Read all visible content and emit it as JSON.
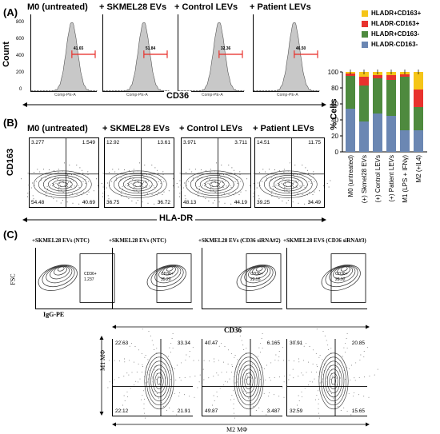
{
  "panelA": {
    "letter": "(A)",
    "ylabel": "Count",
    "xlabel": "CD36",
    "yticks": [
      "800",
      "600",
      "400",
      "200",
      "0"
    ],
    "xlabel_small": "Comp-PE-A",
    "plots": [
      {
        "title": "M0 (untreated)",
        "value": "41.65"
      },
      {
        "title": "+ SKMEL28 EVs",
        "value": "51.84"
      },
      {
        "title": "+ Control LEVs",
        "value": "32.36"
      },
      {
        "title": "+ Patient LEVs",
        "value": "46.50"
      }
    ]
  },
  "panelB": {
    "letter": "(B)",
    "ylabel": "CD163",
    "xlabel": "HLA-DR",
    "plots": [
      {
        "title": "M0 (untreated)",
        "tl": "3.277",
        "tr": "1.549",
        "bl": "54.48",
        "br": "40.69"
      },
      {
        "title": "+ SKMEL28 EVs",
        "tl": "12.92",
        "tr": "13.61",
        "bl": "36.75",
        "br": "36.72"
      },
      {
        "title": "+ Control LEVs",
        "tl": "3.971",
        "tr": "3.711",
        "bl": "48.13",
        "br": "44.19"
      },
      {
        "title": "+ Patient LEVs",
        "tl": "14.51",
        "tr": "11.75",
        "bl": "39.25",
        "br": "34.49"
      }
    ]
  },
  "panelC": {
    "letter": "(C)",
    "fsc_label": "FSC",
    "igg_label": "IgG-PE",
    "cd36_label": "CD36",
    "m1_label": "M1 MΦ",
    "m2_label": "M2 MΦ",
    "gate_name": "CD36+",
    "top_plots": [
      {
        "title": "+SKMEL28 EVs (NTC)",
        "gate_value": "1.237"
      },
      {
        "title": "+SKMEL28 EVs (NTC)",
        "gate_value": "35.20"
      },
      {
        "title": "+SKMEL28 EVs (CD36 siRNA#2)",
        "gate_value": "22.55"
      },
      {
        "title": "+SKMEL28 EVS (CD36 siRNA#3)",
        "gate_value": "28.92"
      }
    ],
    "bottom_plots": [
      {
        "tl": "22.63",
        "tr": "33.34",
        "bl": "22.12",
        "br": "21.91"
      },
      {
        "tl": "40.47",
        "tr": "6.165",
        "bl": "49.87",
        "br": "3.487"
      },
      {
        "tl": "30.91",
        "tr": "20.85",
        "bl": "32.59",
        "br": "15.65"
      }
    ]
  },
  "chart_data": {
    "type": "bar",
    "ylabel": "% Cells",
    "ylim": [
      0,
      100
    ],
    "yticks": [
      "100",
      "80",
      "60",
      "40",
      "20",
      "0"
    ],
    "categories": [
      "M0 (untreated)",
      "(+) Skmel28 EVs",
      "(+) Control LEVs",
      "(+) Patient LEVs",
      "M1 (LPS + IFNγ)",
      "M2 (+IL4)"
    ],
    "series": [
      {
        "name": "HLADR-CD163-",
        "color": "#6b87b3",
        "values": [
          54,
          38,
          48,
          45,
          27,
          27
        ]
      },
      {
        "name": "HLADR+CD163-",
        "color": "#4e8a3e",
        "values": [
          41,
          45,
          44,
          45,
          67,
          29
        ]
      },
      {
        "name": "HLADR-CD163+",
        "color": "#e8322d",
        "values": [
          3,
          11,
          4,
          6,
          3,
          22
        ]
      },
      {
        "name": "HLADR+CD163+",
        "color": "#f5c518",
        "values": [
          2,
          6,
          4,
          4,
          3,
          22
        ]
      }
    ],
    "legend": [
      "HLADR+CD163+",
      "HLADR-CD163+",
      "HLADR+CD163-",
      "HLADR-CD163-"
    ],
    "legend_position": "top"
  }
}
